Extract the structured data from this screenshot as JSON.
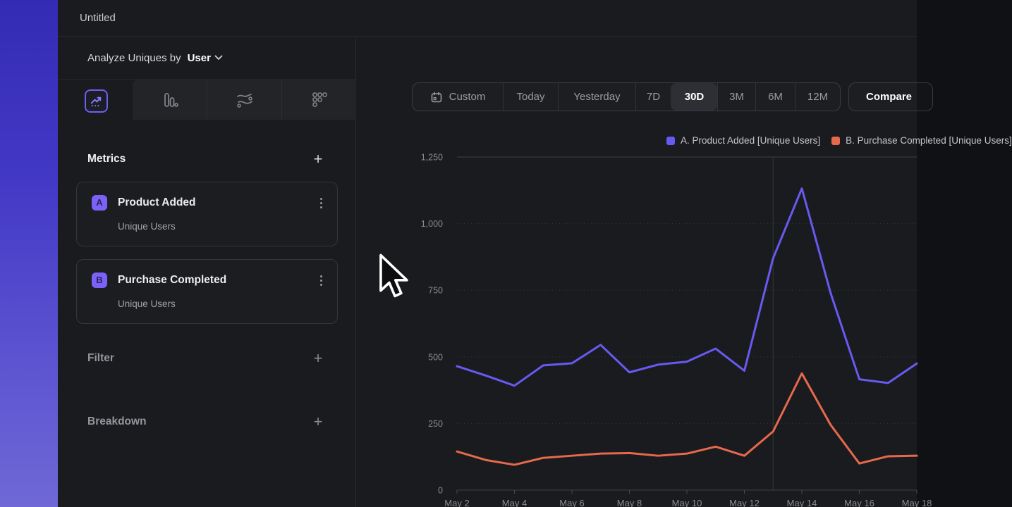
{
  "app": {
    "title": "Untitled"
  },
  "icons": {
    "add": "+",
    "calendar": "calendar-icon",
    "chevron_down": "chevron-down-icon",
    "kebab": "kebab-menu-icon",
    "tab_icons": [
      "line-chart-icon",
      "bar-chart-icon",
      "flow-chart-icon",
      "dots-grid-icon"
    ]
  },
  "sidebar": {
    "analyze": {
      "prefix": "Analyze Uniques by",
      "selected": "User"
    },
    "metrics": {
      "title": "Metrics",
      "items": [
        {
          "badge": "A",
          "event": "Product Added",
          "measure": "Unique Users"
        },
        {
          "badge": "B",
          "event": "Purchase Completed",
          "measure": "Unique Users"
        }
      ]
    },
    "filter": {
      "title": "Filter"
    },
    "breakdown": {
      "title": "Breakdown"
    }
  },
  "toolbar": {
    "ranges": [
      "Custom",
      "Today",
      "Yesterday",
      "7D",
      "30D",
      "3M",
      "6M",
      "12M"
    ],
    "active_range": "30D",
    "compare": "Compare"
  },
  "colors": {
    "accent": "#6f5ef2",
    "series_a": "#675af0",
    "series_b": "#e7694c",
    "grid_solid": "#3e3f44",
    "grid_dotted": "#35363b",
    "axis_text": "#8b8c91"
  },
  "chart_data": {
    "type": "line",
    "x": [
      "May 2",
      "May 3",
      "May 4",
      "May 5",
      "May 6",
      "May 7",
      "May 8",
      "May 9",
      "May 10",
      "May 11",
      "May 12",
      "May 13",
      "May 14",
      "May 15",
      "May 16",
      "May 17",
      "May 18"
    ],
    "x_tick_labels": [
      "May 2",
      "May 4",
      "May 6",
      "May 8",
      "May 10",
      "May 12",
      "May 14",
      "May 16",
      "May 18"
    ],
    "series": [
      {
        "name": "A. Product Added [Unique Users]",
        "color": "#675af0",
        "values": [
          465,
          430,
          392,
          468,
          476,
          545,
          442,
          471,
          482,
          531,
          448,
          870,
          1132,
          740,
          416,
          402,
          475
        ]
      },
      {
        "name": "B. Purchase Completed [Unique Users]",
        "color": "#e7694c",
        "values": [
          145,
          113,
          95,
          121,
          129,
          137,
          139,
          129,
          137,
          163,
          129,
          220,
          438,
          245,
          100,
          127,
          129
        ]
      }
    ],
    "ylim": [
      0,
      1250
    ],
    "yticks": [
      0,
      250,
      500,
      750,
      1000,
      1250
    ],
    "ytick_labels": [
      "0",
      "250",
      "500",
      "750",
      "1,000",
      "1,250"
    ],
    "vline_x": "May 13",
    "grid": "horizontal",
    "legend_position": "top-right"
  }
}
